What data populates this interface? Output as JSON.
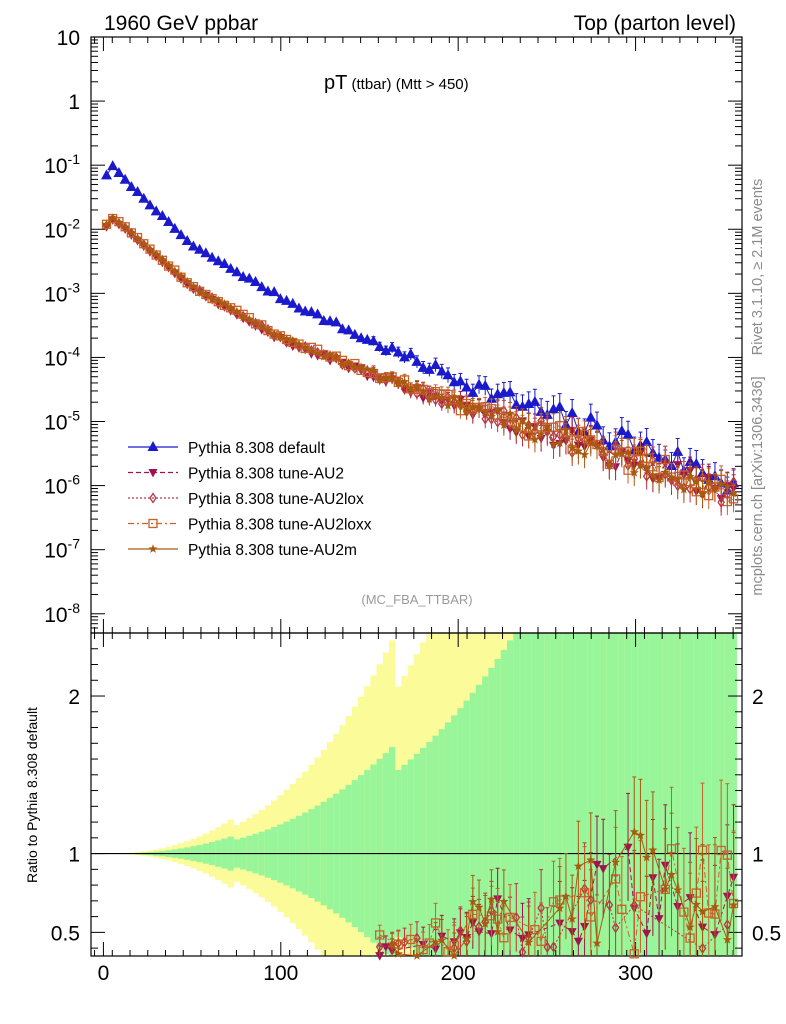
{
  "header": {
    "left": "1960 GeV ppbar",
    "right": "Top (parton level)"
  },
  "side_labels": {
    "rivet": "Rivet 3.1.10, ≥ 2.1M events",
    "mcplots": "mcplots.cern.ch [arXiv:1306.3436]"
  },
  "plot_title": {
    "main": "pT",
    "sub1": " (ttbar)",
    "sub2": " (Mtt > 450)"
  },
  "analysis_tag": "(MC_FBA_TTBAR)",
  "ratio_ylabel": "Ratio to Pythia 8.308 default",
  "legend": [
    "Pythia 8.308 default",
    "Pythia 8.308 tune-AU2",
    "Pythia 8.308 tune-AU2lox",
    "Pythia 8.308 tune-AU2loxx",
    "Pythia 8.308 tune-AU2m"
  ],
  "colors": {
    "default": "#1a1acc",
    "au2": "#a0134f",
    "au2lox": "#bb3344",
    "au2loxx": "#c8622a",
    "au2m": "#a85a10",
    "band_inner": "#99f599",
    "band_outer": "#fbfb99"
  },
  "chart_data": {
    "type": "scatter",
    "title": "pT (ttbar) (Mtt > 450)",
    "xlabel": "",
    "ylabel_main": "",
    "ylabel_ratio": "Ratio to Pythia 8.308 default",
    "xlim": [
      -7,
      360
    ],
    "ylim_main_log10": [
      -8.3,
      1.0
    ],
    "ylim_ratio": [
      0.35,
      2.4
    ],
    "x_ticks": [
      "0",
      "100",
      "200",
      "300"
    ],
    "y_ticks_main": [
      "10",
      "1",
      "10^-1",
      "10^-2",
      "10^-3",
      "10^-4",
      "10^-5",
      "10^-6",
      "10^-7",
      "10^-8"
    ],
    "y_ticks_ratio": [
      "0.5",
      "1",
      "2"
    ],
    "bin_width": 3.5,
    "ratio_band_rel_unc_80": 0.12,
    "series": [
      {
        "name": "Pythia 8.308 default",
        "key": "default",
        "marker": "triangle-up",
        "line": "solid",
        "points": [
          [
            1.75,
            0.07
          ],
          [
            5.25,
            0.095
          ],
          [
            8.75,
            0.075
          ],
          [
            12.25,
            0.058
          ],
          [
            50,
            0.0055
          ],
          [
            100,
            0.00085
          ],
          [
            150,
            0.00018
          ],
          [
            200,
            4.5e-05
          ],
          [
            250,
            1.3e-05
          ],
          [
            300,
            4.5e-06
          ],
          [
            350,
            1.2e-06
          ]
        ]
      },
      {
        "name": "Pythia 8.308 tune-AU2",
        "key": "au2",
        "marker": "triangle-down",
        "line": "dashed",
        "points": [
          [
            1.75,
            0.011
          ],
          [
            5.25,
            0.014
          ],
          [
            8.75,
            0.012
          ],
          [
            50,
            0.0012
          ],
          [
            100,
            0.00019
          ],
          [
            150,
            5.5e-05
          ],
          [
            200,
            1.8e-05
          ],
          [
            250,
            6.5e-06
          ],
          [
            300,
            2.2e-06
          ],
          [
            350,
            8e-07
          ]
        ]
      },
      {
        "name": "Pythia 8.308 tune-AU2lox",
        "key": "au2lox",
        "marker": "diamond-open",
        "line": "dotted",
        "points": [
          [
            1.75,
            0.0115
          ],
          [
            5.25,
            0.0145
          ],
          [
            8.75,
            0.0125
          ],
          [
            50,
            0.00125
          ],
          [
            100,
            0.0002
          ],
          [
            150,
            5.7e-05
          ],
          [
            200,
            1.85e-05
          ],
          [
            250,
            6.6e-06
          ],
          [
            300,
            2.3e-06
          ],
          [
            350,
            8e-07
          ]
        ]
      },
      {
        "name": "Pythia 8.308 tune-AU2loxx",
        "key": "au2loxx",
        "marker": "square-open",
        "line": "dashdot",
        "points": [
          [
            1.75,
            0.012
          ],
          [
            5.25,
            0.015
          ],
          [
            8.75,
            0.013
          ],
          [
            50,
            0.0013
          ],
          [
            100,
            0.00021
          ],
          [
            150,
            6e-05
          ],
          [
            200,
            1.9e-05
          ],
          [
            250,
            6.8e-06
          ],
          [
            300,
            2.4e-06
          ],
          [
            350,
            8.5e-07
          ]
        ]
      },
      {
        "name": "Pythia 8.308 tune-AU2m",
        "key": "au2m",
        "marker": "star",
        "line": "solid",
        "points": [
          [
            1.75,
            0.0118
          ],
          [
            5.25,
            0.0148
          ],
          [
            8.75,
            0.0128
          ],
          [
            50,
            0.00128
          ],
          [
            100,
            0.000205
          ],
          [
            150,
            5.8e-05
          ],
          [
            200,
            1.88e-05
          ],
          [
            250,
            6.7e-06
          ],
          [
            300,
            2.3e-06
          ],
          [
            350,
            8.2e-07
          ]
        ]
      }
    ],
    "ratio_points": {
      "au2": [
        [
          153,
          0.37
        ],
        [
          182,
          0.38
        ],
        [
          205,
          0.45
        ],
        [
          218,
          0.55
        ],
        [
          245,
          0.42
        ],
        [
          262,
          0.6
        ],
        [
          290,
          0.8
        ],
        [
          318,
          0.65
        ],
        [
          330,
          0.4
        ],
        [
          345,
          0.6
        ]
      ],
      "au2lox": [
        [
          185,
          0.4
        ],
        [
          210,
          0.48
        ],
        [
          222,
          0.58
        ],
        [
          252,
          0.5
        ],
        [
          266,
          0.7
        ],
        [
          295,
          0.65
        ],
        [
          318,
          0.55
        ],
        [
          340,
          0.45
        ]
      ],
      "au2loxx": [
        [
          188,
          0.45
        ],
        [
          215,
          0.5
        ],
        [
          225,
          0.58
        ],
        [
          255,
          0.55
        ],
        [
          260,
          0.8
        ],
        [
          285,
          0.7
        ],
        [
          316,
          0.78
        ],
        [
          348,
          0.77
        ]
      ],
      "au2m": [
        [
          153,
          0.36
        ],
        [
          200,
          0.42
        ],
        [
          220,
          0.6
        ],
        [
          248,
          0.45
        ],
        [
          265,
          0.72
        ],
        [
          300,
          0.9
        ],
        [
          318,
          0.95
        ],
        [
          345,
          0.55
        ]
      ]
    }
  }
}
